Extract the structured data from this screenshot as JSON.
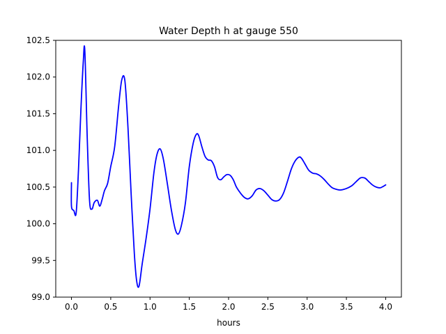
{
  "chart_data": {
    "type": "line",
    "title": "Water Depth h at gauge 550",
    "xlabel": "hours",
    "ylabel": "",
    "xlim": [
      -0.2,
      4.2
    ],
    "ylim": [
      99.0,
      102.5
    ],
    "xticks": [
      0.0,
      0.5,
      1.0,
      1.5,
      2.0,
      2.5,
      3.0,
      3.5,
      4.0
    ],
    "xtick_labels": [
      "0.0",
      "0.5",
      "1.0",
      "1.5",
      "2.0",
      "2.5",
      "3.0",
      "3.5",
      "4.0"
    ],
    "yticks": [
      99.0,
      99.5,
      100.0,
      100.5,
      101.0,
      101.5,
      102.0,
      102.5
    ],
    "ytick_labels": [
      "99.0",
      "99.5",
      "100.0",
      "100.5",
      "101.0",
      "101.5",
      "102.0",
      "102.5"
    ],
    "grid": false,
    "legend": "none",
    "series": [
      {
        "color": "#0000ff",
        "x": [
          0.0,
          0.0,
          0.03,
          0.06,
          0.09,
          0.12,
          0.15,
          0.17,
          0.2,
          0.23,
          0.26,
          0.29,
          0.33,
          0.36,
          0.39,
          0.42,
          0.46,
          0.5,
          0.55,
          0.6,
          0.64,
          0.68,
          0.72,
          0.76,
          0.8,
          0.83,
          0.86,
          0.9,
          0.95,
          1.0,
          1.05,
          1.09,
          1.13,
          1.17,
          1.22,
          1.27,
          1.32,
          1.36,
          1.4,
          1.45,
          1.5,
          1.55,
          1.59,
          1.62,
          1.66,
          1.7,
          1.74,
          1.78,
          1.82,
          1.86,
          1.9,
          1.94,
          1.98,
          2.02,
          2.06,
          2.1,
          2.15,
          2.2,
          2.25,
          2.3,
          2.35,
          2.4,
          2.45,
          2.5,
          2.55,
          2.6,
          2.65,
          2.7,
          2.75,
          2.8,
          2.85,
          2.9,
          2.93,
          2.97,
          3.02,
          3.07,
          3.12,
          3.17,
          3.22,
          3.27,
          3.32,
          3.37,
          3.42,
          3.47,
          3.52,
          3.57,
          3.62,
          3.67,
          3.7,
          3.74,
          3.78,
          3.83,
          3.88,
          3.93,
          3.97,
          4.0
        ],
        "y": [
          100.56,
          100.24,
          100.18,
          100.15,
          100.75,
          101.55,
          102.2,
          102.36,
          101.2,
          100.32,
          100.2,
          100.29,
          100.32,
          100.24,
          100.33,
          100.45,
          100.55,
          100.78,
          101.05,
          101.6,
          101.96,
          101.95,
          101.3,
          100.4,
          99.6,
          99.22,
          99.15,
          99.45,
          99.8,
          100.2,
          100.7,
          100.95,
          101.02,
          100.88,
          100.55,
          100.2,
          99.93,
          99.86,
          99.98,
          100.28,
          100.78,
          101.1,
          101.22,
          101.2,
          101.05,
          100.92,
          100.87,
          100.86,
          100.78,
          100.63,
          100.6,
          100.64,
          100.67,
          100.66,
          100.6,
          100.5,
          100.42,
          100.36,
          100.34,
          100.38,
          100.46,
          100.48,
          100.45,
          100.39,
          100.33,
          100.31,
          100.33,
          100.42,
          100.58,
          100.75,
          100.86,
          100.91,
          100.89,
          100.82,
          100.73,
          100.69,
          100.68,
          100.65,
          100.6,
          100.54,
          100.49,
          100.47,
          100.46,
          100.47,
          100.49,
          100.52,
          100.57,
          100.62,
          100.63,
          100.62,
          100.58,
          100.53,
          100.5,
          100.49,
          100.51,
          100.53
        ]
      }
    ]
  }
}
